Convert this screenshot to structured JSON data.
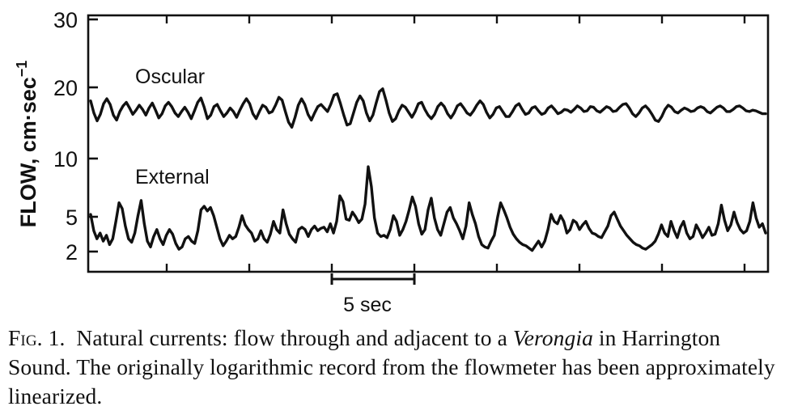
{
  "chart_data": {
    "type": "line",
    "ylabel": "FLOW, cm·sec",
    "ylabel_exponent": "−1",
    "y_ticks": [
      "30",
      "20",
      "10",
      "5",
      "2"
    ],
    "y_tick_values": [
      30,
      20,
      10,
      5,
      2
    ],
    "ylim": [
      0,
      30
    ],
    "scale_bar_label": "5 sec",
    "scale_bar_seconds": 5,
    "duration_seconds": 42,
    "grid": false,
    "series": [
      {
        "name": "Oscular",
        "values": [
          18.1,
          16.4,
          15.3,
          16.2,
          17.7,
          18.4,
          17.6,
          16.1,
          15.4,
          16.6,
          17.4,
          17.9,
          17.1,
          16.2,
          16.8,
          17.5,
          16.9,
          16.1,
          17.1,
          17.8,
          16.8,
          15.7,
          16.3,
          17.4,
          17.9,
          17.3,
          16.4,
          15.9,
          16.6,
          17.2,
          16.5,
          15.6,
          16.7,
          17.9,
          18.5,
          17.2,
          15.6,
          16.1,
          17.3,
          17.6,
          16.7,
          15.9,
          16.4,
          17.1,
          16.6,
          15.8,
          16.8,
          17.7,
          18.4,
          17.7,
          16.3,
          15.6,
          16.6,
          17.5,
          17.2,
          16.4,
          16.6,
          17.5,
          18.6,
          18.2,
          16.6,
          15.1,
          14.4,
          15.8,
          17.5,
          18.4,
          17.6,
          16.2,
          15.4,
          16.4,
          17.3,
          17.6,
          17.1,
          16.6,
          17.6,
          18.9,
          19.1,
          17.7,
          16.1,
          14.7,
          14.9,
          16.4,
          17.9,
          18.8,
          18.1,
          16.4,
          15.3,
          16.1,
          17.8,
          19.4,
          19.8,
          18.2,
          16.4,
          15.2,
          15.6,
          16.7,
          17.5,
          17.2,
          16.5,
          15.8,
          16.6,
          17.7,
          17.9,
          16.9,
          16.1,
          15.6,
          16.2,
          17.3,
          17.8,
          17.3,
          16.3,
          15.7,
          16.4,
          17.4,
          17.7,
          17.1,
          16.4,
          16.1,
          16.7,
          17.5,
          18.1,
          17.6,
          16.5,
          15.7,
          16.2,
          17.1,
          17.3,
          16.6,
          15.9,
          15.9,
          16.6,
          17.4,
          17.7,
          16.9,
          16.2,
          16.4,
          17.1,
          17.3,
          16.7,
          16.2,
          16.4,
          17.1,
          17.4,
          16.9,
          16.3,
          16.5,
          16.9,
          16.8,
          16.5,
          16.9,
          17.4,
          17.1,
          16.6,
          16.7,
          17.3,
          17.2,
          16.7,
          16.5,
          16.9,
          17.3,
          17.1,
          16.6,
          16.7,
          17.2,
          17.6,
          17.7,
          17.1,
          16.3,
          15.9,
          16.4,
          17.1,
          17.4,
          16.9,
          16.2,
          15.4,
          15.2,
          15.9,
          16.9,
          17.5,
          17.2,
          16.6,
          16.4,
          16.8,
          17.1,
          16.9,
          16.6,
          16.7,
          17.1,
          17.3,
          17.1,
          16.6,
          16.4,
          16.8,
          17.2,
          17.4,
          17.1,
          16.6,
          16.6,
          16.9,
          17.3,
          17.4,
          17.1,
          16.7,
          16.6,
          16.8,
          16.7,
          16.5,
          16.3,
          16.3
        ]
      },
      {
        "name": "External",
        "values": [
          5.2,
          3.8,
          3.1,
          3.6,
          2.9,
          3.4,
          2.6,
          3.1,
          4.6,
          6.2,
          5.7,
          4.2,
          3.1,
          2.8,
          3.6,
          5.1,
          6.4,
          4.4,
          2.9,
          2.4,
          3.3,
          3.9,
          3.1,
          2.6,
          3.4,
          3.9,
          3.5,
          2.7,
          2.2,
          2.4,
          3.1,
          3.3,
          2.9,
          2.7,
          3.8,
          5.6,
          5.9,
          5.5,
          5.8,
          5.1,
          4.1,
          3.1,
          2.5,
          2.9,
          3.4,
          3.1,
          3.3,
          4.1,
          5.1,
          4.3,
          3.9,
          3.6,
          2.9,
          3.1,
          3.8,
          3.1,
          2.8,
          3.5,
          4.6,
          3.9,
          3.6,
          5.6,
          4.4,
          3.5,
          3.1,
          2.8,
          3.9,
          4.1,
          3.9,
          3.3,
          3.9,
          4.2,
          3.8,
          4.0,
          4.1,
          3.7,
          4.4,
          3.6,
          4.6,
          6.8,
          6.3,
          4.8,
          4.7,
          5.4,
          5.0,
          4.5,
          4.8,
          6.1,
          9.3,
          7.6,
          4.9,
          3.6,
          3.3,
          3.4,
          3.2,
          3.9,
          5.1,
          4.6,
          3.4,
          3.9,
          4.6,
          5.6,
          6.7,
          5.9,
          4.4,
          3.5,
          3.9,
          5.6,
          6.6,
          4.9,
          3.9,
          3.4,
          4.4,
          5.4,
          5.8,
          4.9,
          4.4,
          3.8,
          3.1,
          4.2,
          6.2,
          5.2,
          4.4,
          3.3,
          2.6,
          2.4,
          2.3,
          2.9,
          3.4,
          4.9,
          6.2,
          5.6,
          4.9,
          4.1,
          3.5,
          3.1,
          2.8,
          2.6,
          2.5,
          2.3,
          2.1,
          2.5,
          2.9,
          2.4,
          2.9,
          3.9,
          5.2,
          4.6,
          4.4,
          5.1,
          4.6,
          3.6,
          3.9,
          4.7,
          4.5,
          3.9,
          4.3,
          4.6,
          4.0,
          3.6,
          3.5,
          3.3,
          3.2,
          3.7,
          4.2,
          5.1,
          5.4,
          4.8,
          4.2,
          3.8,
          3.4,
          3.1,
          2.8,
          2.6,
          2.5,
          2.3,
          2.2,
          2.4,
          2.6,
          2.9,
          3.5,
          4.3,
          3.6,
          3.3,
          4.6,
          3.8,
          3.2,
          4.1,
          4.6,
          3.6,
          3.1,
          3.3,
          4.3,
          3.8,
          3.2,
          3.6,
          4.1,
          3.4,
          3.5,
          4.4,
          6.0,
          4.7,
          3.8,
          4.3,
          5.4,
          4.5,
          3.9,
          3.6,
          3.8,
          4.6,
          6.2,
          4.9,
          4.1,
          4.4,
          3.6
        ]
      }
    ]
  },
  "caption": {
    "fig_label": "Fig. 1.",
    "text_before": "Natural currents: flow through and adjacent to a ",
    "italic_term": "Verongia",
    "text_after": " in Harrington Sound. The originally logarithmic record from the flowmeter has been approximately linearized."
  }
}
